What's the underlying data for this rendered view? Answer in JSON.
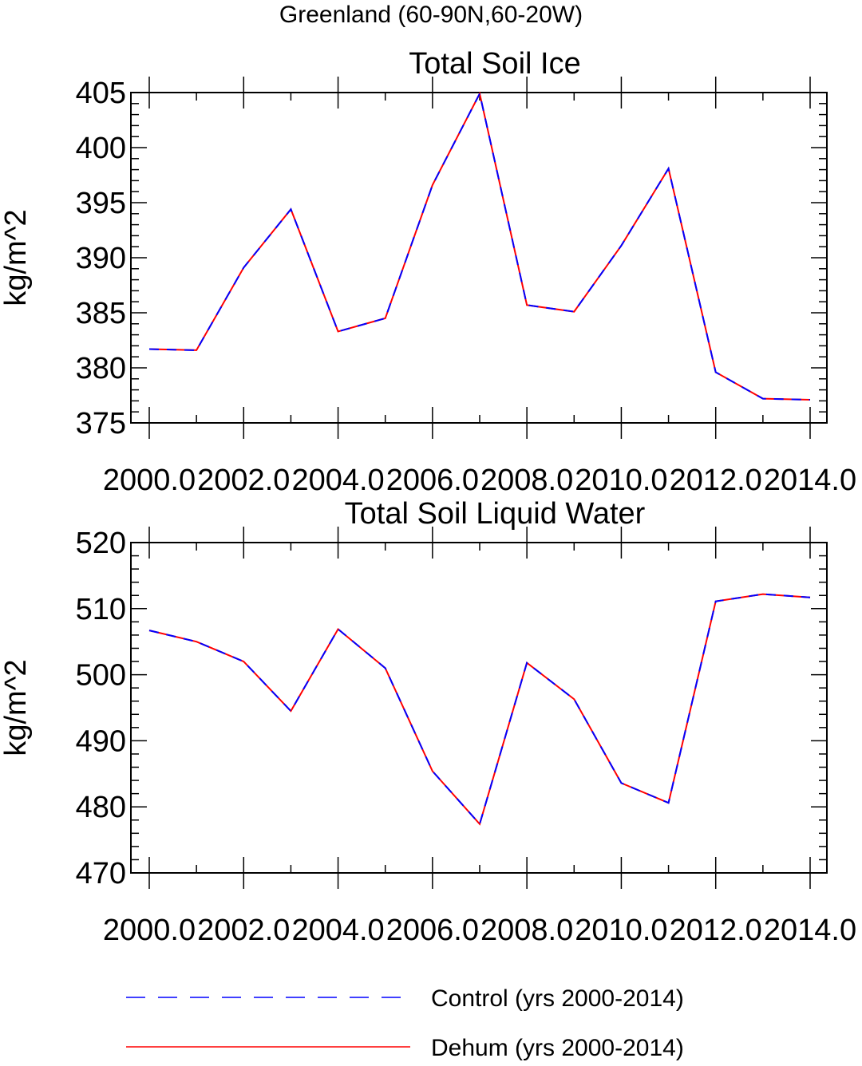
{
  "figure": {
    "suptitle": "Greenland (60-90N,60-20W)"
  },
  "legend": {
    "entries": [
      {
        "label": "Control (yrs 2000-2014)",
        "color": "#0000ff",
        "style": "dashed"
      },
      {
        "label": "Dehum (yrs 2000-2014)",
        "color": "#ff0000",
        "style": "solid"
      }
    ],
    "placement": "bottom-center"
  },
  "chart_data": [
    {
      "type": "line",
      "title": "Total Soil Ice",
      "xlabel": "",
      "ylabel": "kg/m^2",
      "xlim": [
        2000,
        2014
      ],
      "ylim": [
        375,
        405
      ],
      "xticks": [
        2000,
        2002,
        2004,
        2006,
        2008,
        2010,
        2012,
        2014
      ],
      "xtick_labels": [
        "2000.0",
        "2002.0",
        "2004.0",
        "2006.0",
        "2008.0",
        "2010.0",
        "2012.0",
        "2014.0"
      ],
      "yticks": [
        375,
        380,
        385,
        390,
        395,
        400,
        405
      ],
      "ytick_labels": [
        "375",
        "380",
        "385",
        "390",
        "395",
        "400",
        "405"
      ],
      "x": [
        2000,
        2001,
        2002,
        2003,
        2004,
        2005,
        2006,
        2007,
        2008,
        2009,
        2010,
        2011,
        2012,
        2013,
        2014
      ],
      "series": [
        {
          "name": "Control (yrs 2000-2014)",
          "color": "#0000ff",
          "style": "dashed",
          "values": [
            381.7,
            381.6,
            389.1,
            394.4,
            383.3,
            384.5,
            396.6,
            404.9,
            385.7,
            385.1,
            391.1,
            398.1,
            379.6,
            377.2,
            377.1
          ]
        },
        {
          "name": "Dehum (yrs 2000-2014)",
          "color": "#ff0000",
          "style": "solid",
          "values": [
            381.7,
            381.6,
            389.1,
            394.4,
            383.3,
            384.5,
            396.6,
            404.9,
            385.7,
            385.1,
            391.1,
            398.1,
            379.6,
            377.2,
            377.1
          ]
        }
      ],
      "grid": false
    },
    {
      "type": "line",
      "title": "Total Soil Liquid Water",
      "xlabel": "",
      "ylabel": "kg/m^2",
      "xlim": [
        2000,
        2014
      ],
      "ylim": [
        470,
        520
      ],
      "xticks": [
        2000,
        2002,
        2004,
        2006,
        2008,
        2010,
        2012,
        2014
      ],
      "xtick_labels": [
        "2000.0",
        "2002.0",
        "2004.0",
        "2006.0",
        "2008.0",
        "2010.0",
        "2012.0",
        "2014.0"
      ],
      "yticks": [
        470,
        480,
        490,
        500,
        510,
        520
      ],
      "ytick_labels": [
        "470",
        "480",
        "490",
        "500",
        "510",
        "520"
      ],
      "x": [
        2000,
        2001,
        2002,
        2003,
        2004,
        2005,
        2006,
        2007,
        2008,
        2009,
        2010,
        2011,
        2012,
        2013,
        2014
      ],
      "series": [
        {
          "name": "Control (yrs 2000-2014)",
          "color": "#0000ff",
          "style": "dashed",
          "values": [
            506.7,
            505.0,
            502.0,
            494.5,
            506.9,
            501.0,
            485.4,
            477.4,
            501.8,
            496.3,
            483.6,
            480.6,
            511.1,
            512.2,
            511.7
          ]
        },
        {
          "name": "Dehum (yrs 2000-2014)",
          "color": "#ff0000",
          "style": "solid",
          "values": [
            506.7,
            505.0,
            502.0,
            494.5,
            506.9,
            501.0,
            485.4,
            477.4,
            501.8,
            496.3,
            483.6,
            480.6,
            511.1,
            512.2,
            511.7
          ]
        }
      ],
      "grid": false
    }
  ]
}
